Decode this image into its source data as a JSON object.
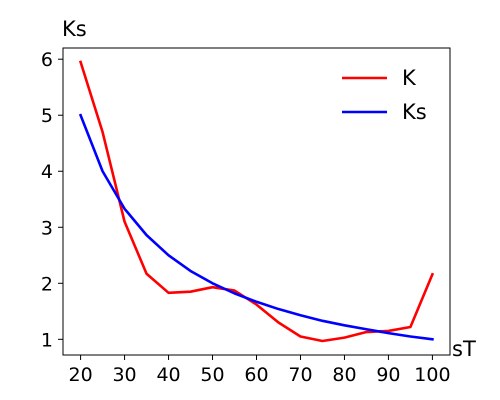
{
  "chart_data": {
    "type": "line",
    "xlabel": "sT",
    "ylabel": "Ks",
    "xlim": [
      16,
      104
    ],
    "ylim": [
      0.72,
      6.2
    ],
    "x_ticks": [
      20,
      30,
      40,
      50,
      60,
      70,
      80,
      90,
      100
    ],
    "y_ticks": [
      1,
      2,
      3,
      4,
      5,
      6
    ],
    "grid": false,
    "legend_position": "top-right",
    "x": [
      20,
      25,
      30,
      35,
      40,
      45,
      50,
      55,
      60,
      65,
      70,
      75,
      80,
      85,
      90,
      95,
      100
    ],
    "series": [
      {
        "name": "K",
        "color": "#ff0000",
        "values": [
          5.95,
          4.7,
          3.1,
          2.17,
          1.83,
          1.85,
          1.93,
          1.87,
          1.62,
          1.3,
          1.05,
          0.97,
          1.03,
          1.13,
          1.15,
          1.22,
          2.16
        ]
      },
      {
        "name": "Ks",
        "color": "#0000ff",
        "values": [
          5.0,
          4.0,
          3.33,
          2.86,
          2.5,
          2.22,
          2.0,
          1.82,
          1.67,
          1.54,
          1.43,
          1.33,
          1.25,
          1.18,
          1.11,
          1.05,
          1.0
        ]
      }
    ]
  }
}
